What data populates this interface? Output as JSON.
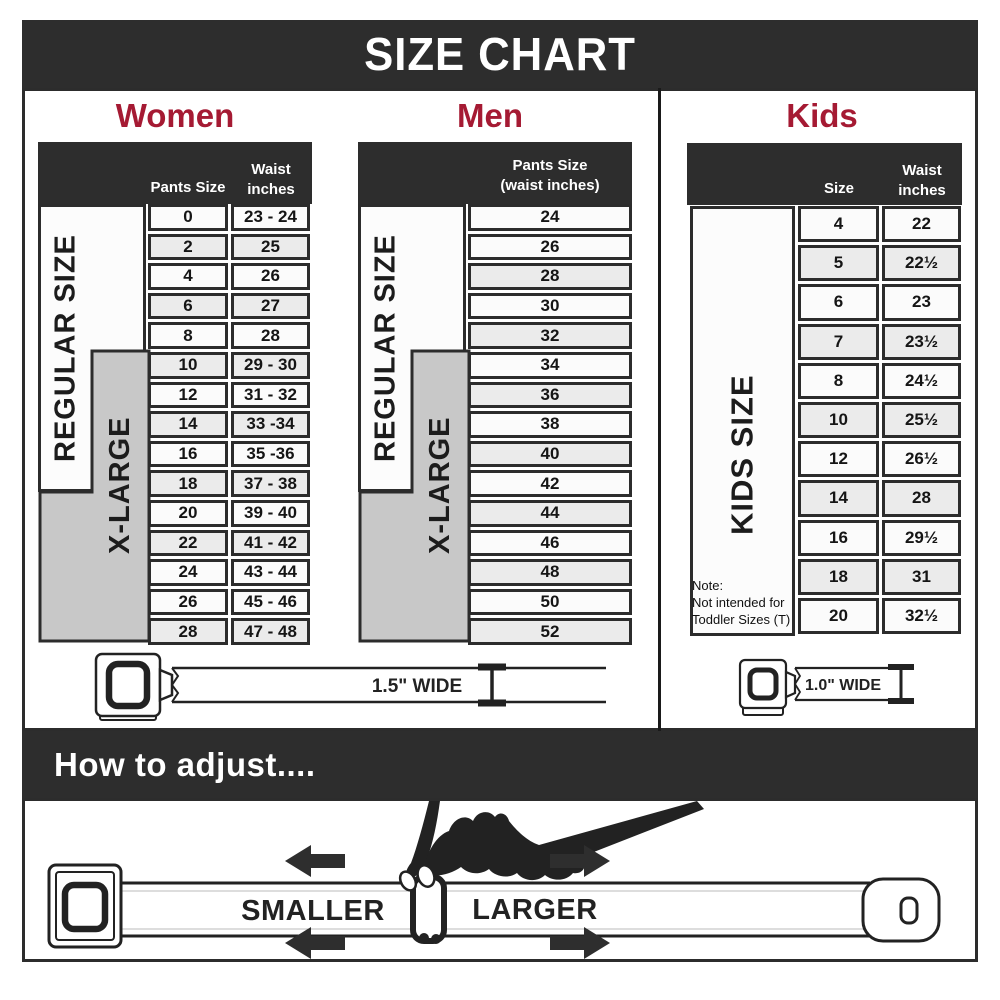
{
  "page_title": "SIZE CHART",
  "colors": {
    "bar_dark": "#2d2d2d",
    "accent_crimson": "#a51a33",
    "row_white": "#fbfbfb",
    "row_shaded": "#ebebeb",
    "xlarge_gray": "#c8c8c8",
    "border_dark": "#2c2c2c"
  },
  "sections": {
    "women": {
      "heading": "Women",
      "header_col1": "Pants Size",
      "header_col2_line1": "Waist",
      "header_col2_line2": "inches",
      "regular_label": "REGULAR SIZE",
      "xlarge_label": "X-LARGE",
      "belt_width_label": "1.5\" WIDE"
    },
    "men": {
      "heading": "Men",
      "header_line1": "Pants Size",
      "header_line2": "(waist inches)",
      "regular_label": "REGULAR SIZE",
      "xlarge_label": "X-LARGE"
    },
    "kids": {
      "heading": "Kids",
      "header_col1": "Size",
      "header_col2_line1": "Waist",
      "header_col2_line2": "inches",
      "size_label": "KIDS SIZE",
      "note_line1": "Note:",
      "note_line2": "Not intended for",
      "note_line3": "Toddler Sizes (T)",
      "belt_width_label": "1.0\" WIDE"
    }
  },
  "adjust_section": {
    "heading": "How to adjust....",
    "smaller_label": "SMALLER",
    "larger_label": "LARGER"
  },
  "chart_data": [
    {
      "type": "table",
      "name": "women",
      "title": "Women",
      "columns": [
        "Pants Size",
        "Waist inches"
      ],
      "rows": [
        [
          "0",
          "23 - 24"
        ],
        [
          "2",
          "25"
        ],
        [
          "4",
          "26"
        ],
        [
          "6",
          "27"
        ],
        [
          "8",
          "28"
        ],
        [
          "10",
          "29 - 30"
        ],
        [
          "12",
          "31 - 32"
        ],
        [
          "14",
          "33 -34"
        ],
        [
          "16",
          "35 -36"
        ],
        [
          "18",
          "37 - 38"
        ],
        [
          "20",
          "39 - 40"
        ],
        [
          "22",
          "41 - 42"
        ],
        [
          "24",
          "43 - 44"
        ],
        [
          "26",
          "45 - 46"
        ],
        [
          "28",
          "47 - 48"
        ]
      ],
      "shaded_rows": [
        1,
        3,
        5,
        7,
        9,
        11,
        14
      ],
      "row_bands": [
        {
          "label": "REGULAR SIZE",
          "first_row": 0,
          "last_row": 9
        },
        {
          "label": "X-LARGE",
          "first_row": 5,
          "last_row": 14
        }
      ]
    },
    {
      "type": "table",
      "name": "men",
      "title": "Men",
      "columns": [
        "Pants Size (waist inches)"
      ],
      "rows": [
        [
          "24"
        ],
        [
          "26"
        ],
        [
          "28"
        ],
        [
          "30"
        ],
        [
          "32"
        ],
        [
          "34"
        ],
        [
          "36"
        ],
        [
          "38"
        ],
        [
          "40"
        ],
        [
          "42"
        ],
        [
          "44"
        ],
        [
          "46"
        ],
        [
          "48"
        ],
        [
          "50"
        ],
        [
          "52"
        ]
      ],
      "shaded_rows": [
        2,
        4,
        6,
        8,
        10,
        12,
        14
      ],
      "row_bands": [
        {
          "label": "REGULAR SIZE",
          "first_row": 0,
          "last_row": 9
        },
        {
          "label": "X-LARGE",
          "first_row": 5,
          "last_row": 14
        }
      ]
    },
    {
      "type": "table",
      "name": "kids",
      "title": "Kids",
      "columns": [
        "Size",
        "Waist inches"
      ],
      "rows": [
        [
          "4",
          "22"
        ],
        [
          "5",
          "22½"
        ],
        [
          "6",
          "23"
        ],
        [
          "7",
          "23½"
        ],
        [
          "8",
          "24½"
        ],
        [
          "10",
          "25½"
        ],
        [
          "12",
          "26½"
        ],
        [
          "14",
          "28"
        ],
        [
          "16",
          "29½"
        ],
        [
          "18",
          "31"
        ],
        [
          "20",
          "32½"
        ]
      ],
      "shaded_rows": [
        1,
        3,
        5,
        7,
        9
      ],
      "row_bands": [
        {
          "label": "KIDS SIZE",
          "first_row": 0,
          "last_row": 10
        }
      ]
    }
  ]
}
